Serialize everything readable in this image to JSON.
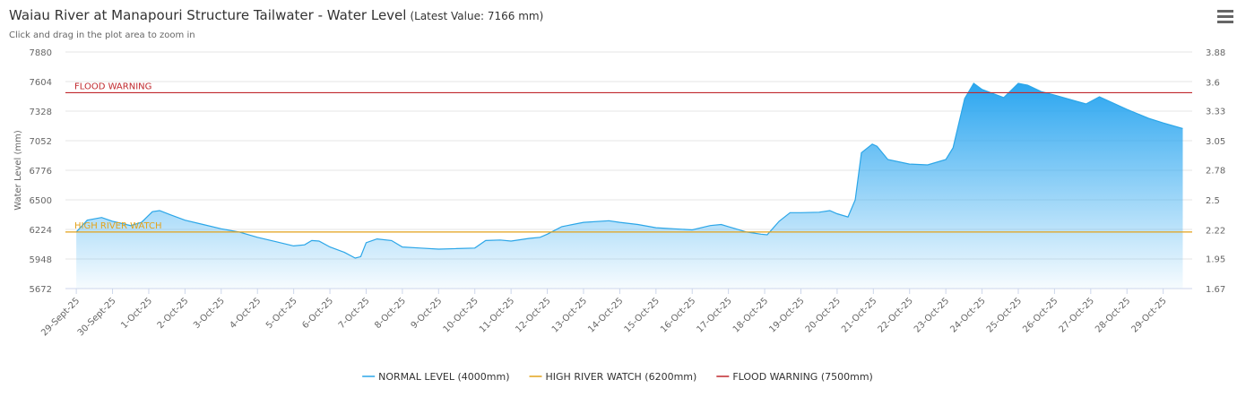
{
  "chart_data": {
    "type": "area",
    "title": "Waiau River at Manapouri Structure Tailwater - Water Level",
    "latest": "(Latest Value: 7166 mm)",
    "subtitle": "Click and drag in the plot area to zoom in",
    "y_label": "Water Level (mm)",
    "color": "#2ba6e8",
    "grid": true,
    "xlim": [
      -0.3,
      30.8
    ],
    "xticks": [
      {
        "value": 0,
        "label": "29-Sept-25"
      },
      {
        "value": 1,
        "label": "30-Sept-25"
      },
      {
        "value": 2,
        "label": "1-Oct-25"
      },
      {
        "value": 3,
        "label": "2-Oct-25"
      },
      {
        "value": 4,
        "label": "3-Oct-25"
      },
      {
        "value": 5,
        "label": "4-Oct-25"
      },
      {
        "value": 6,
        "label": "5-Oct-25"
      },
      {
        "value": 7,
        "label": "6-Oct-25"
      },
      {
        "value": 8,
        "label": "7-Oct-25"
      },
      {
        "value": 9,
        "label": "8-Oct-25"
      },
      {
        "value": 10,
        "label": "9-Oct-25"
      },
      {
        "value": 11,
        "label": "10-Oct-25"
      },
      {
        "value": 12,
        "label": "11-Oct-25"
      },
      {
        "value": 13,
        "label": "12-Oct-25"
      },
      {
        "value": 14,
        "label": "13-Oct-25"
      },
      {
        "value": 15,
        "label": "14-Oct-25"
      },
      {
        "value": 16,
        "label": "15-Oct-25"
      },
      {
        "value": 17,
        "label": "16-Oct-25"
      },
      {
        "value": 18,
        "label": "17-Oct-25"
      },
      {
        "value": 19,
        "label": "18-Oct-25"
      },
      {
        "value": 20,
        "label": "19-Oct-25"
      },
      {
        "value": 21,
        "label": "20-Oct-25"
      },
      {
        "value": 22,
        "label": "21-Oct-25"
      },
      {
        "value": 23,
        "label": "22-Oct-25"
      },
      {
        "value": 24,
        "label": "23-Oct-25"
      },
      {
        "value": 25,
        "label": "24-Oct-25"
      },
      {
        "value": 26,
        "label": "25-Oct-25"
      },
      {
        "value": 27,
        "label": "26-Oct-25"
      },
      {
        "value": 28,
        "label": "27-Oct-25"
      },
      {
        "value": 29,
        "label": "28-Oct-25"
      },
      {
        "value": 30,
        "label": "29-Oct-25"
      }
    ],
    "ylim": [
      5672,
      7880
    ],
    "yticks": [
      5672,
      5948,
      6224,
      6500,
      6776,
      7052,
      7328,
      7604,
      7880
    ],
    "y2lim": [
      1.67,
      3.88
    ],
    "y2ticks": [
      1.67,
      1.95,
      2.22,
      2.5,
      2.78,
      3.05,
      3.33,
      3.6,
      3.88
    ],
    "x": [
      0,
      0.3,
      0.7,
      1,
      1.5,
      1.8,
      2.1,
      2.3,
      2.6,
      3,
      3.5,
      4,
      4.5,
      5,
      5.5,
      6,
      6.3,
      6.5,
      6.7,
      7,
      7.4,
      7.7,
      7.85,
      8,
      8.3,
      8.7,
      9,
      9.5,
      10,
      10.5,
      11,
      11.3,
      11.7,
      12,
      12.5,
      12.8,
      13,
      13.4,
      14,
      14.7,
      15,
      15.5,
      16,
      16.5,
      17,
      17.5,
      17.8,
      18,
      18.5,
      18.9,
      19.07,
      19.4,
      19.7,
      20,
      20.5,
      20.8,
      21,
      21.3,
      21.5,
      21.67,
      21.97,
      22.1,
      22.4,
      23,
      23.5,
      24,
      24.2,
      24.52,
      24.77,
      25,
      25.6,
      26,
      26.26,
      26.63,
      27,
      27.6,
      27.87,
      28.24,
      29,
      29.6,
      30,
      30.54
    ],
    "values": [
      6200,
      6310,
      6335,
      6300,
      6260,
      6290,
      6390,
      6400,
      6360,
      6310,
      6270,
      6230,
      6200,
      6150,
      6110,
      6070,
      6080,
      6120,
      6115,
      6060,
      6010,
      5956,
      5970,
      6100,
      6135,
      6120,
      6060,
      6050,
      6040,
      6045,
      6050,
      6120,
      6125,
      6115,
      6140,
      6150,
      6180,
      6250,
      6290,
      6305,
      6290,
      6270,
      6240,
      6230,
      6220,
      6260,
      6270,
      6250,
      6200,
      6180,
      6174,
      6300,
      6380,
      6380,
      6385,
      6400,
      6370,
      6340,
      6500,
      6940,
      7020,
      7000,
      6876,
      6834,
      6826,
      6876,
      6985,
      7445,
      7587,
      7530,
      7454,
      7587,
      7570,
      7510,
      7478,
      7420,
      7395,
      7462,
      7345,
      7260,
      7218,
      7166
    ],
    "plot_lines": [
      {
        "label": "FLOOD WARNING",
        "value": 7500,
        "color": "#c0282d"
      },
      {
        "label": "HIGH RIVER WATCH",
        "value": 6200,
        "color": "#e3a21a"
      }
    ],
    "legend": [
      {
        "name": "NORMAL LEVEL (4000mm)",
        "color": "#2ba6e8"
      },
      {
        "name": "HIGH RIVER WATCH (6200mm)",
        "color": "#e3a21a"
      },
      {
        "name": "FLOOD WARNING (7500mm)",
        "color": "#c0282d"
      }
    ]
  }
}
